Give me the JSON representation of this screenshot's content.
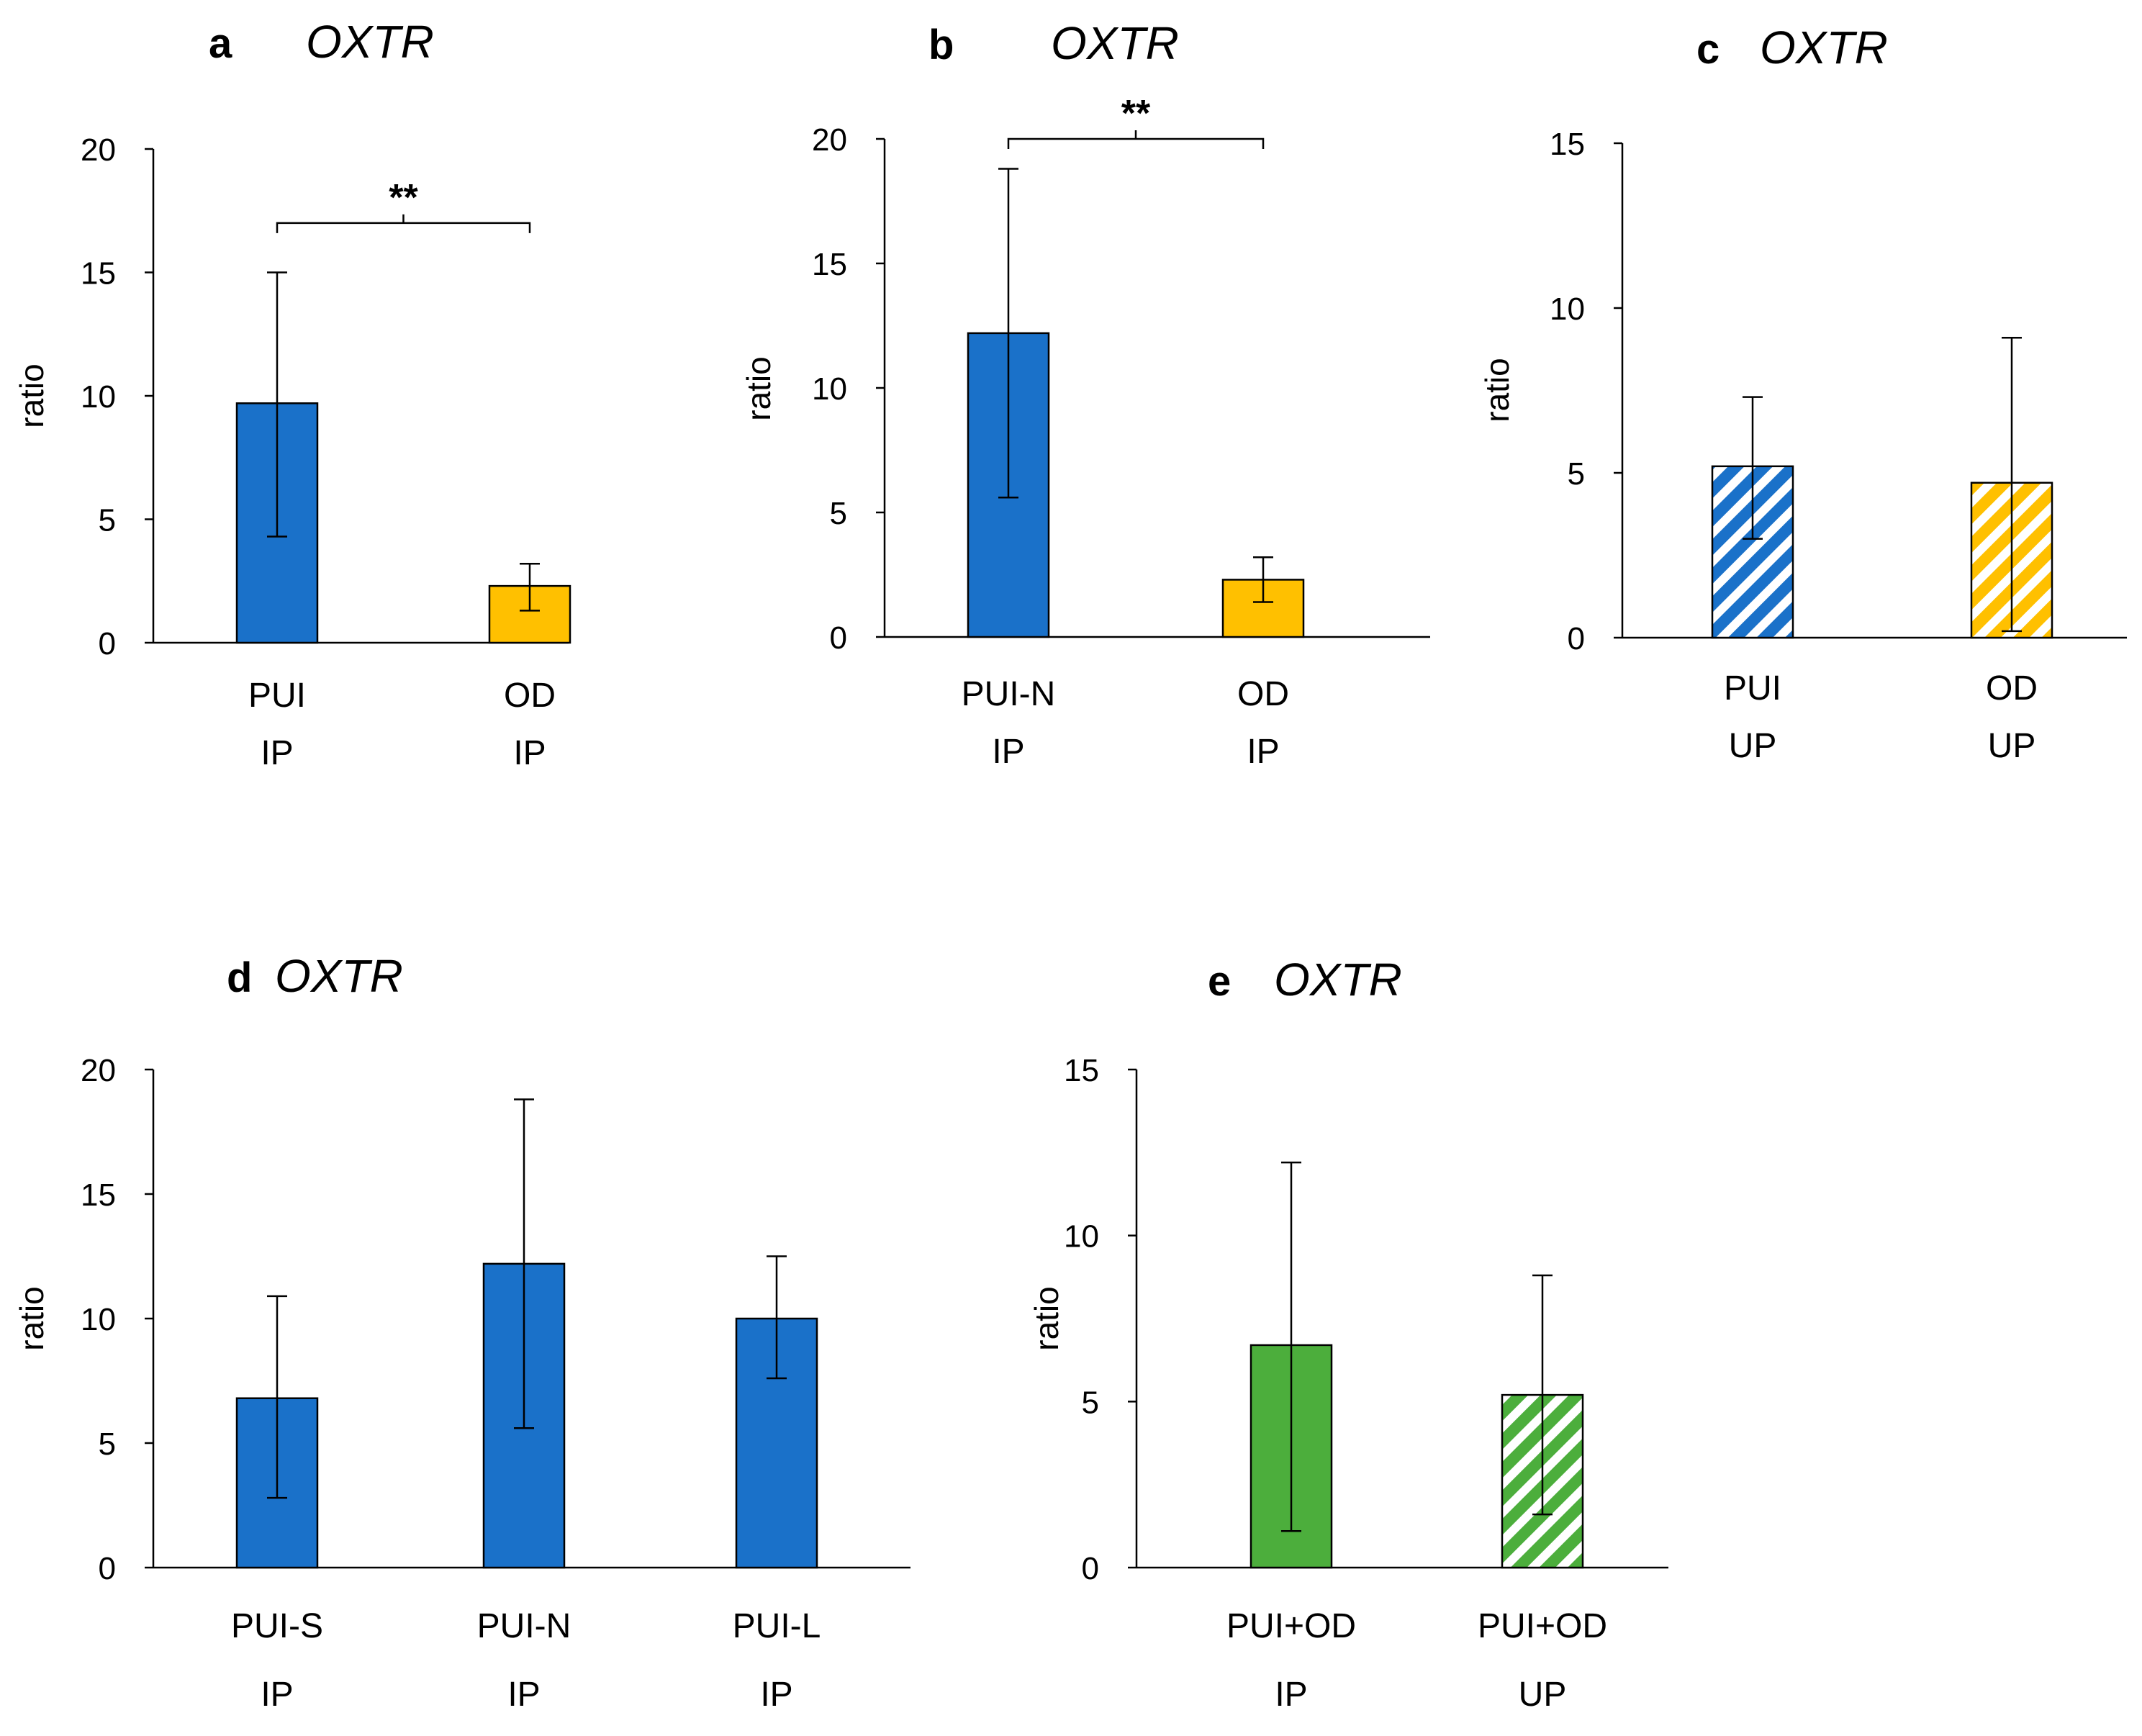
{
  "colors": {
    "blue": "#1a71c9",
    "yellow": "#ffc000",
    "green": "#4cae3c",
    "axis": "#000000",
    "hatch_bg": "#ffffff"
  },
  "chart_data": [
    {
      "panel": "a",
      "title": "OXTR",
      "type": "bar",
      "ylabel": "ratio",
      "ylim": [
        0,
        20
      ],
      "yticks": [
        0,
        5,
        10,
        15,
        20
      ],
      "bars": [
        {
          "label1": "PUI",
          "label2": "IP",
          "value": 9.7,
          "err_low": 4.3,
          "err_high": 15.0,
          "color": "blue",
          "hatched": false
        },
        {
          "label1": "OD",
          "label2": "IP",
          "value": 2.3,
          "err_low": 1.3,
          "err_high": 3.2,
          "color": "yellow",
          "hatched": false
        }
      ],
      "significance": {
        "label": "**",
        "from": 0,
        "to": 1,
        "y": 17.0
      }
    },
    {
      "panel": "b",
      "title": "OXTR",
      "type": "bar",
      "ylabel": "ratio",
      "ylim": [
        0,
        20
      ],
      "yticks": [
        0,
        5,
        10,
        15,
        20
      ],
      "bars": [
        {
          "label1": "PUI-N",
          "label2": "IP",
          "value": 12.2,
          "err_low": 5.6,
          "err_high": 18.8,
          "color": "blue",
          "hatched": false
        },
        {
          "label1": "OD",
          "label2": "IP",
          "value": 2.3,
          "err_low": 1.4,
          "err_high": 3.2,
          "color": "yellow",
          "hatched": false
        }
      ],
      "significance": {
        "label": "**",
        "from": 0,
        "to": 1,
        "y": 20.0
      }
    },
    {
      "panel": "c",
      "title": "OXTR",
      "type": "bar",
      "ylabel": "ratio",
      "ylim": [
        0,
        15
      ],
      "yticks": [
        0,
        5,
        10,
        15
      ],
      "bars": [
        {
          "label1": "PUI",
          "label2": "UP",
          "value": 5.2,
          "err_low": 3.0,
          "err_high": 7.3,
          "color": "blue",
          "hatched": true
        },
        {
          "label1": "OD",
          "label2": "UP",
          "value": 4.7,
          "err_low": 0.2,
          "err_high": 9.1,
          "color": "yellow",
          "hatched": true
        }
      ]
    },
    {
      "panel": "d",
      "title": "OXTR",
      "type": "bar",
      "ylabel": "ratio",
      "ylim": [
        0,
        20
      ],
      "yticks": [
        0,
        5,
        10,
        15,
        20
      ],
      "bars": [
        {
          "label1": "PUI-S",
          "label2": "IP",
          "value": 6.8,
          "err_low": 2.8,
          "err_high": 10.9,
          "color": "blue",
          "hatched": false
        },
        {
          "label1": "PUI-N",
          "label2": "IP",
          "value": 12.2,
          "err_low": 5.6,
          "err_high": 18.8,
          "color": "blue",
          "hatched": false
        },
        {
          "label1": "PUI-L",
          "label2": "IP",
          "value": 10.0,
          "err_low": 7.6,
          "err_high": 12.5,
          "color": "blue",
          "hatched": false
        }
      ]
    },
    {
      "panel": "e",
      "title": "OXTR",
      "type": "bar",
      "ylabel": "ratio",
      "ylim": [
        0,
        15
      ],
      "yticks": [
        0,
        5,
        10,
        15
      ],
      "bars": [
        {
          "label1": "PUI+OD",
          "label2": "IP",
          "value": 6.7,
          "err_low": 1.1,
          "err_high": 12.2,
          "color": "green",
          "hatched": false
        },
        {
          "label1": "PUI+OD",
          "label2": "UP",
          "value": 5.2,
          "err_low": 1.6,
          "err_high": 8.8,
          "color": "green",
          "hatched": true
        }
      ]
    }
  ]
}
